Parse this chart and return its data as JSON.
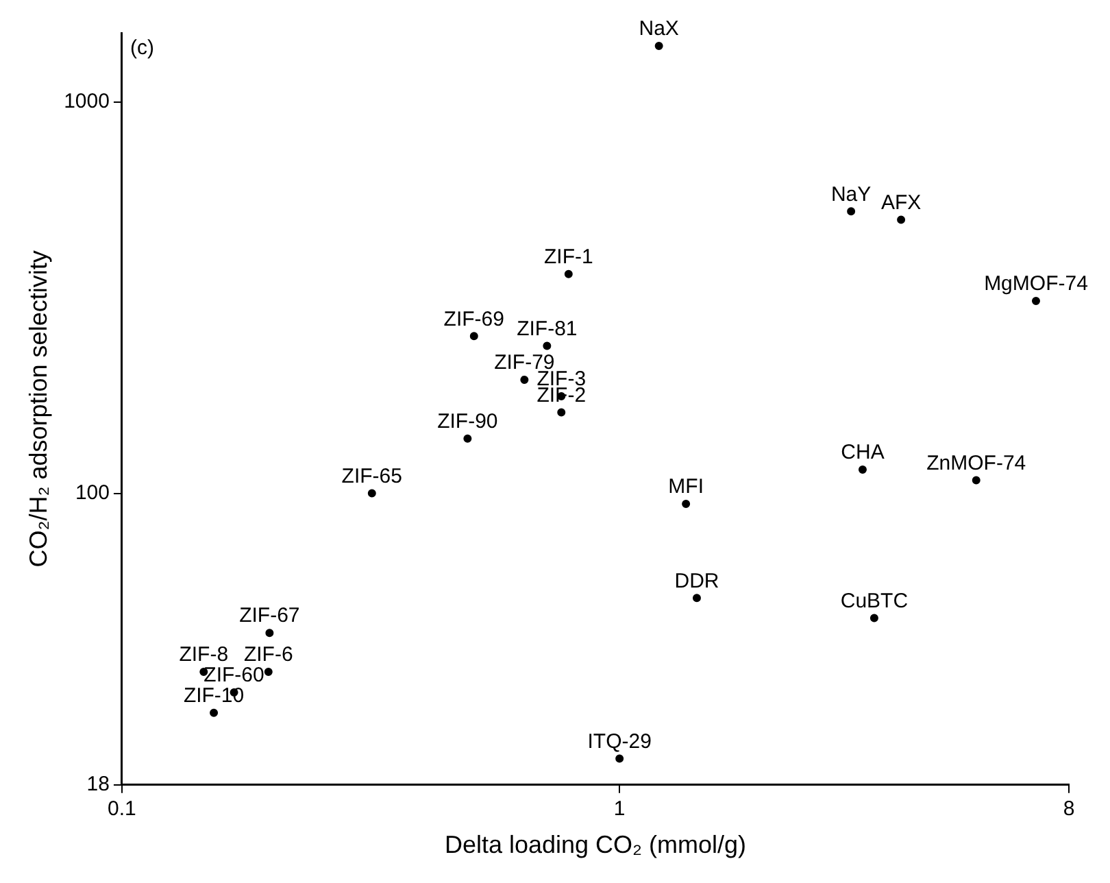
{
  "chart_data": {
    "type": "scatter",
    "xlabel": "Delta loading CO₂ (mmol/g)",
    "ylabel": "CO₂/H₂ adsorption selectivity",
    "annotations": [
      "(c)"
    ],
    "log": "xy",
    "grid": false,
    "legend": false,
    "marker": "circle",
    "xlim": [
      0.1,
      8
    ],
    "xticks": [
      0.1,
      1,
      8
    ],
    "ylim": [
      18,
      1500
    ],
    "yticks": [
      18,
      100,
      1000
    ],
    "series": [
      {
        "color": "#000000",
        "x": [
          1.2,
          2.92,
          3.68,
          6.87,
          0.79,
          0.51,
          0.715,
          0.644,
          0.764,
          0.764,
          0.495,
          0.318,
          0.198,
          0.146,
          0.197,
          0.168,
          0.153,
          1.0,
          1.36,
          1.43,
          3.25,
          3.08,
          5.21
        ],
        "values": [
          1390,
          525,
          500,
          310,
          363,
          252,
          238,
          195,
          177,
          161,
          138,
          100,
          44,
          35,
          35,
          31,
          27.5,
          21,
          94,
          54,
          48,
          115,
          108
        ],
        "value_labels": [
          "NaX",
          "NaY",
          "AFX",
          "MgMOF-74",
          "ZIF-1",
          "ZIF-69",
          "ZIF-81",
          "ZIF-79",
          "ZIF-3",
          "ZIF-2",
          "ZIF-90",
          "ZIF-65",
          "ZIF-67",
          "ZIF-8",
          "ZIF-6",
          "ZIF-60",
          "ZIF-10",
          "ITQ-29",
          "MFI",
          "DDR",
          "CuBTC",
          "CHA",
          "ZnMOF-74"
        ]
      }
    ]
  }
}
